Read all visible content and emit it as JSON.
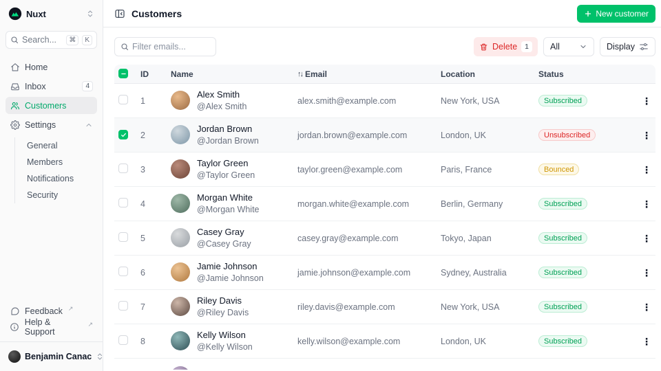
{
  "app": {
    "accent_color": "#00c16a"
  },
  "sidebar": {
    "brand": "Nuxt",
    "search": {
      "placeholder": "Search...",
      "kbd": [
        "⌘",
        "K"
      ]
    },
    "nav": [
      {
        "label": "Home",
        "icon": "home-icon"
      },
      {
        "label": "Inbox",
        "icon": "inbox-icon",
        "badge": "4"
      },
      {
        "label": "Customers",
        "icon": "users-icon",
        "active": true
      },
      {
        "label": "Settings",
        "icon": "gear-icon",
        "expanded": true,
        "children": [
          "General",
          "Members",
          "Notifications",
          "Security"
        ]
      }
    ],
    "footer": [
      {
        "label": "Feedback",
        "icon": "chat-bubble-icon",
        "external": true
      },
      {
        "label": "Help & Support",
        "icon": "info-circle-icon",
        "external": true
      }
    ],
    "user": {
      "name": "Benjamin Canac"
    }
  },
  "header": {
    "title": "Customers",
    "new_customer_label": "New customer"
  },
  "toolbar": {
    "filter_placeholder": "Filter emails...",
    "delete_label": "Delete",
    "delete_count": "1",
    "status_filter_value": "All",
    "display_label": "Display"
  },
  "table": {
    "columns": [
      {
        "label": "ID"
      },
      {
        "label": "Name"
      },
      {
        "label": "Email",
        "sorted": true
      },
      {
        "label": "Location"
      },
      {
        "label": "Status"
      }
    ],
    "status_styles": {
      "Subscribed": "ok",
      "Unsubscribed": "bad",
      "Bounced": "warn"
    },
    "rows": [
      {
        "id": "1",
        "name": "Alex Smith",
        "handle": "@Alex Smith",
        "email": "alex.smith@example.com",
        "location": "New York, USA",
        "status": "Subscribed",
        "selected": false
      },
      {
        "id": "2",
        "name": "Jordan Brown",
        "handle": "@Jordan Brown",
        "email": "jordan.brown@example.com",
        "location": "London, UK",
        "status": "Unsubscribed",
        "selected": true
      },
      {
        "id": "3",
        "name": "Taylor Green",
        "handle": "@Taylor Green",
        "email": "taylor.green@example.com",
        "location": "Paris, France",
        "status": "Bounced",
        "selected": false
      },
      {
        "id": "4",
        "name": "Morgan White",
        "handle": "@Morgan White",
        "email": "morgan.white@example.com",
        "location": "Berlin, Germany",
        "status": "Subscribed",
        "selected": false
      },
      {
        "id": "5",
        "name": "Casey Gray",
        "handle": "@Casey Gray",
        "email": "casey.gray@example.com",
        "location": "Tokyo, Japan",
        "status": "Subscribed",
        "selected": false
      },
      {
        "id": "6",
        "name": "Jamie Johnson",
        "handle": "@Jamie Johnson",
        "email": "jamie.johnson@example.com",
        "location": "Sydney, Australia",
        "status": "Subscribed",
        "selected": false
      },
      {
        "id": "7",
        "name": "Riley Davis",
        "handle": "@Riley Davis",
        "email": "riley.davis@example.com",
        "location": "New York, USA",
        "status": "Subscribed",
        "selected": false
      },
      {
        "id": "8",
        "name": "Kelly Wilson",
        "handle": "@Kelly Wilson",
        "email": "kelly.wilson@example.com",
        "location": "London, UK",
        "status": "Subscribed",
        "selected": false
      }
    ]
  }
}
